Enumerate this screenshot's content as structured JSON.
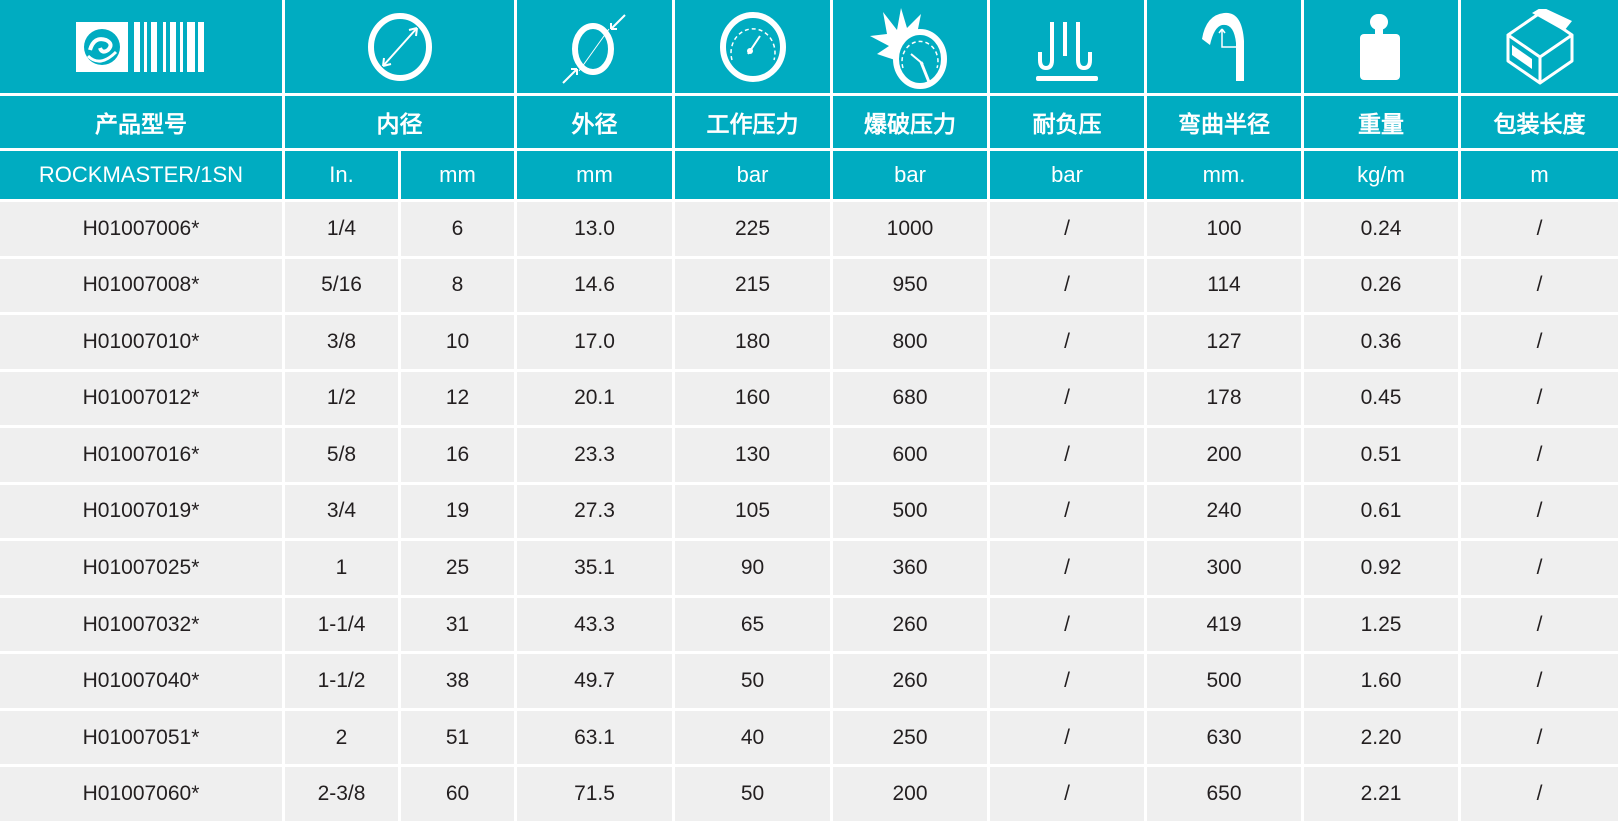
{
  "colors": {
    "header": "#00acc1",
    "row": "#efefef",
    "text": "#231f20"
  },
  "icons": [
    "logo-icon",
    "inner-diameter-icon",
    "outer-diameter-icon",
    "pressure-gauge-icon",
    "burst-pressure-icon",
    "vacuum-icon",
    "bend-radius-icon",
    "weight-icon",
    "package-box-icon"
  ],
  "headers": [
    "产品型号",
    "内径",
    "外径",
    "工作压力",
    "爆破压力",
    "耐负压",
    "弯曲半径",
    "重量",
    "包装长度"
  ],
  "units": [
    "ROCKMASTER/1SN",
    "In.",
    "mm",
    "mm",
    "bar",
    "bar",
    "bar",
    "mm.",
    "kg/m",
    "m"
  ],
  "rows": [
    [
      "H01007006*",
      "1/4",
      "6",
      "13.0",
      "225",
      "1000",
      "/",
      "100",
      "0.24",
      "/"
    ],
    [
      "H01007008*",
      "5/16",
      "8",
      "14.6",
      "215",
      "950",
      "/",
      "114",
      "0.26",
      "/"
    ],
    [
      "H01007010*",
      "3/8",
      "10",
      "17.0",
      "180",
      "800",
      "/",
      "127",
      "0.36",
      "/"
    ],
    [
      "H01007012*",
      "1/2",
      "12",
      "20.1",
      "160",
      "680",
      "/",
      "178",
      "0.45",
      "/"
    ],
    [
      "H01007016*",
      "5/8",
      "16",
      "23.3",
      "130",
      "600",
      "/",
      "200",
      "0.51",
      "/"
    ],
    [
      "H01007019*",
      "3/4",
      "19",
      "27.3",
      "105",
      "500",
      "/",
      "240",
      "0.61",
      "/"
    ],
    [
      "H01007025*",
      "1",
      "25",
      "35.1",
      "90",
      "360",
      "/",
      "300",
      "0.92",
      "/"
    ],
    [
      "H01007032*",
      "1-1/4",
      "31",
      "43.3",
      "65",
      "260",
      "/",
      "419",
      "1.25",
      "/"
    ],
    [
      "H01007040*",
      "1-1/2",
      "38",
      "49.7",
      "50",
      "260",
      "/",
      "500",
      "1.60",
      "/"
    ],
    [
      "H01007051*",
      "2",
      "51",
      "63.1",
      "40",
      "250",
      "/",
      "630",
      "2.20",
      "/"
    ],
    [
      "H01007060*",
      "2-3/8",
      "60",
      "71.5",
      "50",
      "200",
      "/",
      "650",
      "2.21",
      "/"
    ]
  ]
}
